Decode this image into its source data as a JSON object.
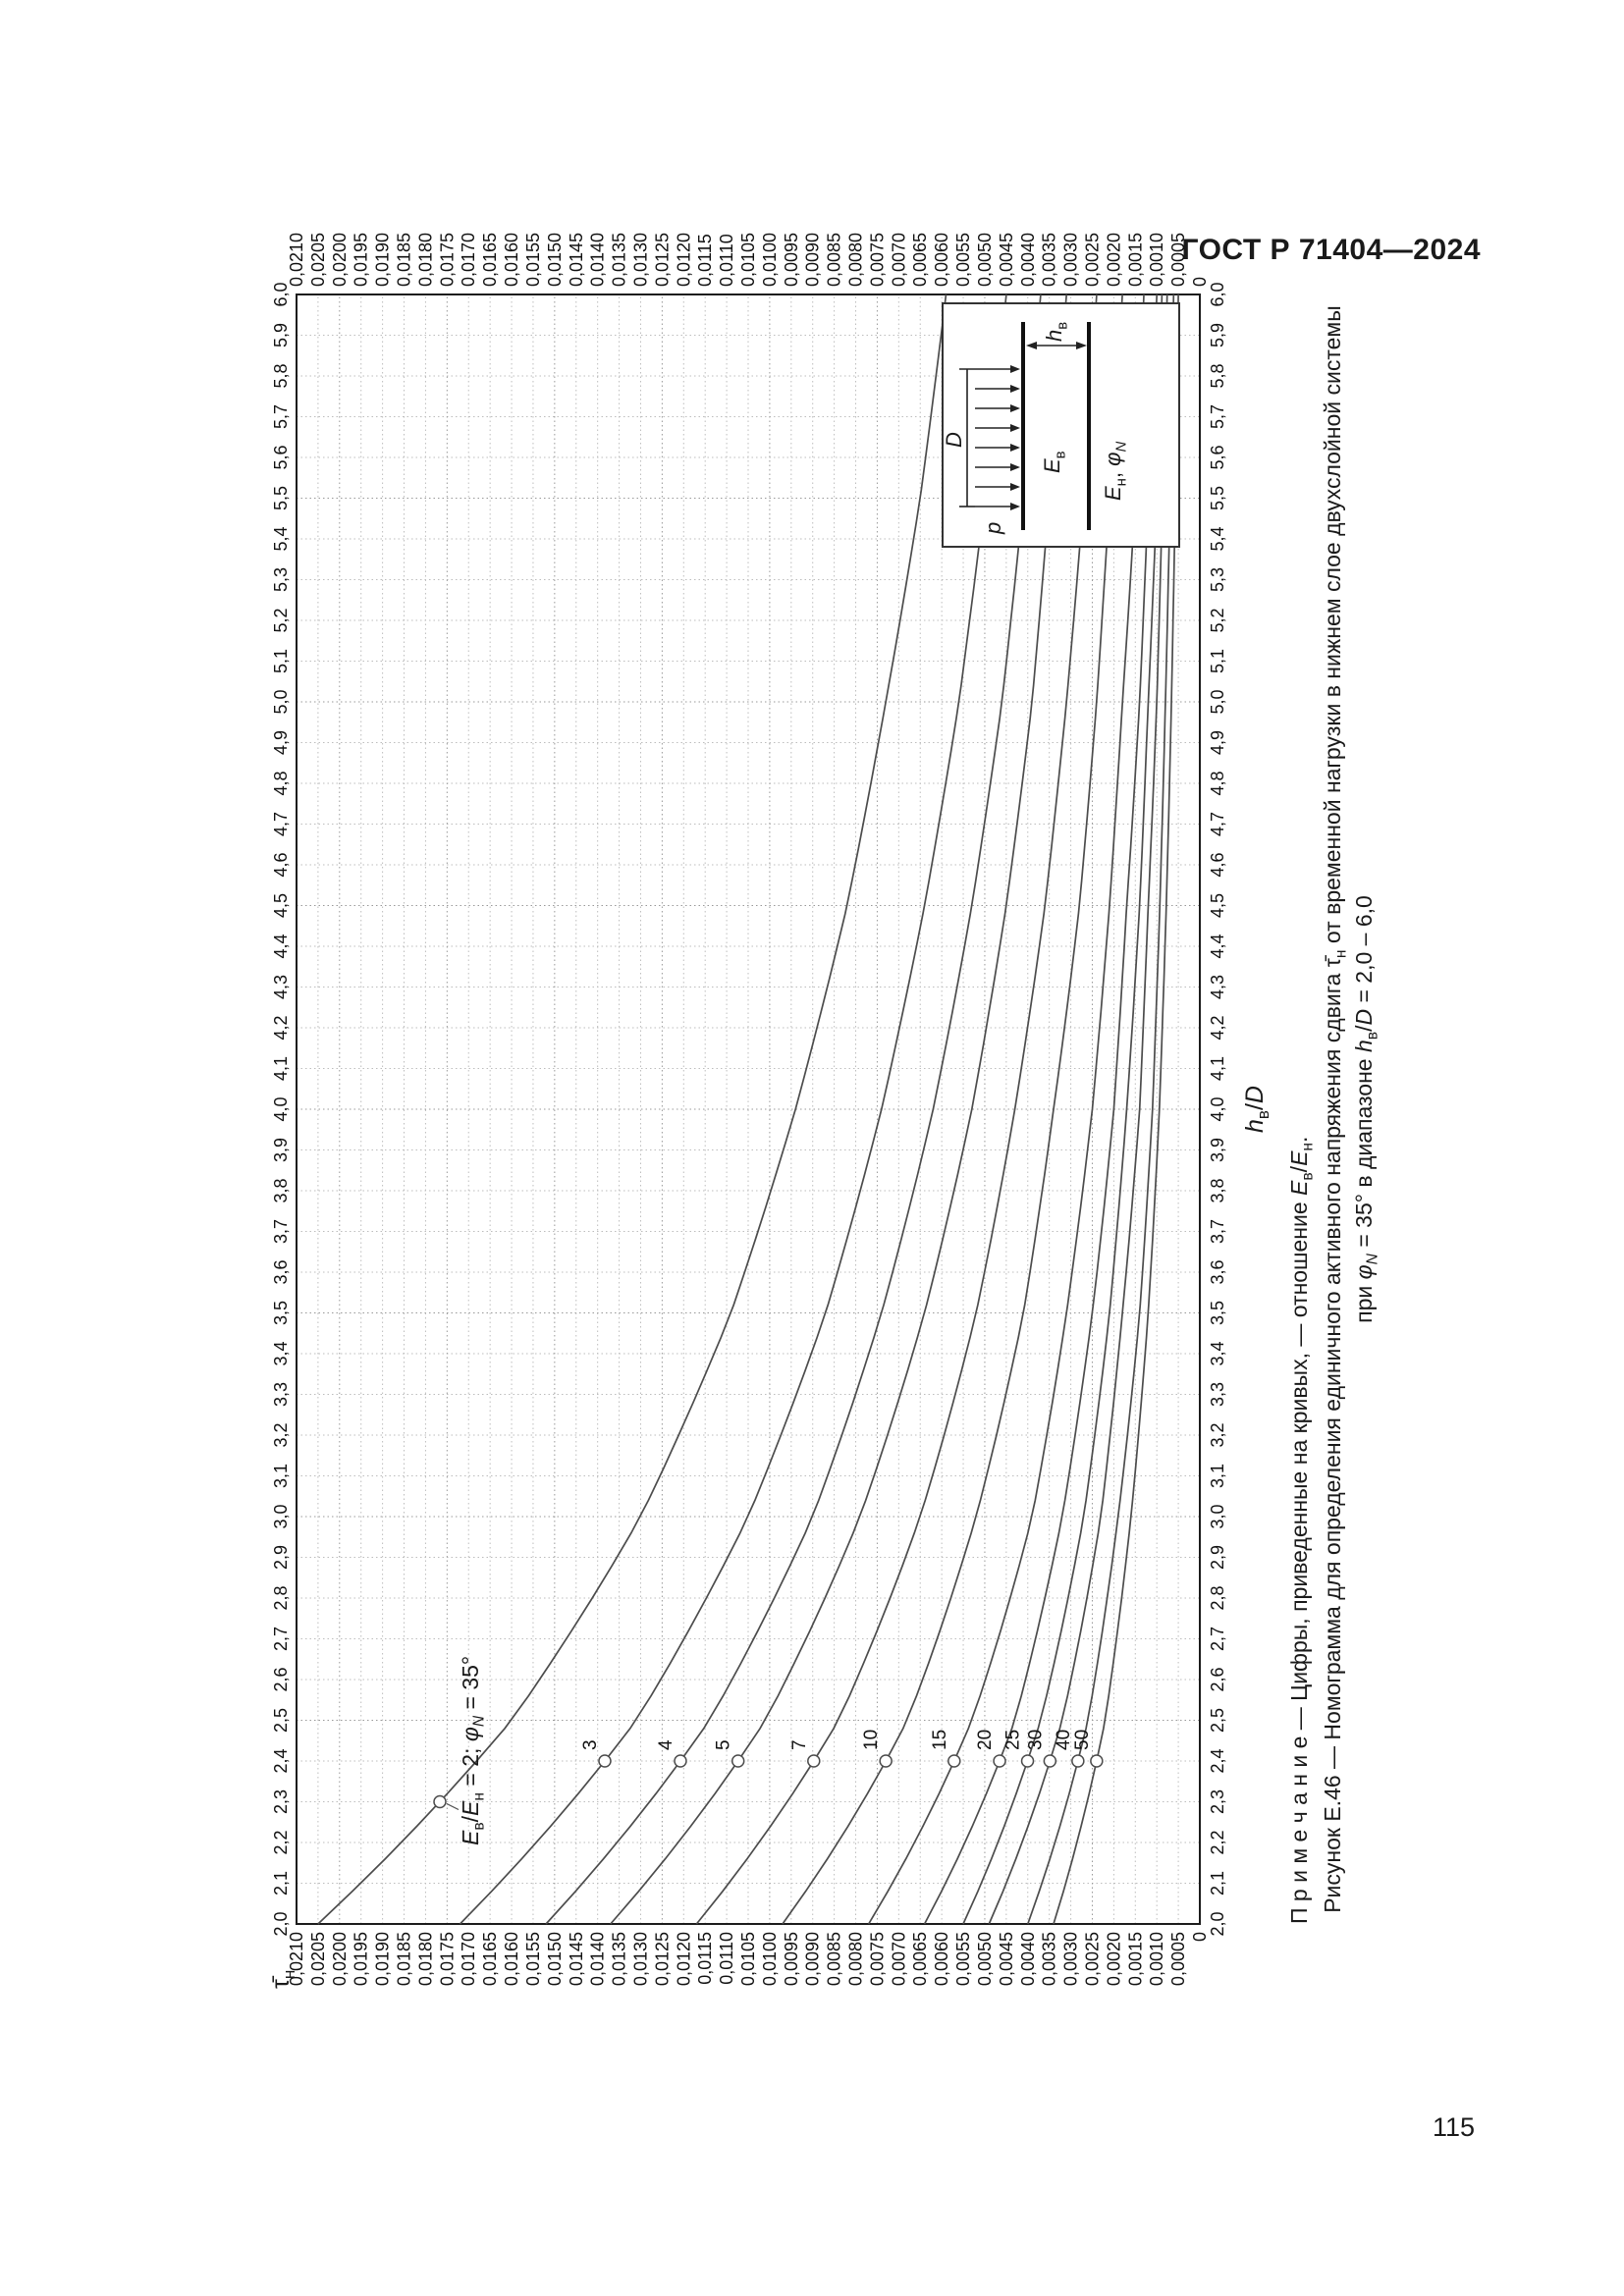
{
  "page": {
    "header": "ГОСТ Р 71404—2024",
    "number": "115"
  },
  "figure": {
    "annotation_series": "2",
    "annotation_segments": [
      {
        "t": "E",
        "i": true
      },
      {
        "t": "в",
        "sub": true
      },
      {
        "t": "/"
      },
      {
        "t": "E",
        "i": true
      },
      {
        "t": "н",
        "sub": true
      },
      {
        "t": " = 2; "
      },
      {
        "t": "φ",
        "i": true
      },
      {
        "t": "N",
        "i": true,
        "sub": true
      },
      {
        "t": " = 35°"
      }
    ],
    "y_axis_title_segments": [
      {
        "t": "τ̄"
      },
      {
        "t": "н",
        "sub": true
      }
    ],
    "x_axis_title_segments": [
      {
        "t": "h",
        "i": true
      },
      {
        "t": "в",
        "sub": true
      },
      {
        "t": "/"
      },
      {
        "t": "D",
        "i": true
      }
    ],
    "note_segments": [
      {
        "t": "П р и м е ч а н и е — Цифры, приведенные на кривых, — отношение "
      },
      {
        "t": "E",
        "i": true
      },
      {
        "t": "в",
        "sub": true
      },
      {
        "t": "/"
      },
      {
        "t": "E",
        "i": true
      },
      {
        "t": "н",
        "sub": true
      },
      {
        "t": "."
      }
    ],
    "caption_line1_segments": [
      {
        "t": "Рисунок Е.46 — Номограмма для определения единичного активного напряжения сдвига "
      },
      {
        "t": "τ̄"
      },
      {
        "t": "н",
        "sub": true
      },
      {
        "t": " от временной нагрузки в нижнем слое двухслойной системы"
      }
    ],
    "caption_line2_segments": [
      {
        "t": "при "
      },
      {
        "t": "φ",
        "i": true
      },
      {
        "t": "N",
        "i": true,
        "sub": true
      },
      {
        "t": " = 35° в диапазоне "
      },
      {
        "t": "h",
        "i": true
      },
      {
        "t": "в",
        "sub": true
      },
      {
        "t": "/"
      },
      {
        "t": "D",
        "i": true
      },
      {
        "t": " = 2,0 – 6,0"
      }
    ],
    "inset": {
      "p_segments": [
        {
          "t": "p",
          "i": true
        }
      ],
      "D_segments": [
        {
          "t": "D",
          "i": true
        }
      ],
      "upper_layer_segments": [
        {
          "t": "E",
          "i": true
        },
        {
          "t": "в",
          "sub": true
        }
      ],
      "lower_layer_segments": [
        {
          "t": "E",
          "i": true
        },
        {
          "t": "н",
          "sub": true
        },
        {
          "t": ", "
        },
        {
          "t": "φ",
          "i": true
        },
        {
          "t": "N",
          "i": true,
          "sub": true
        }
      ],
      "thickness_segments": [
        {
          "t": "h",
          "i": true
        },
        {
          "t": "в",
          "sub": true
        }
      ]
    }
  },
  "chart_data": {
    "type": "line",
    "title": "Номограмма Е.46: τ̄н от hв/D при φN = 35°, кривые — отношение Eв/Ен",
    "xlabel": "hв/D",
    "ylabel": "τ̄н",
    "x_min": 2.0,
    "x_max": 6.0,
    "x_step": 0.1,
    "y_min": 0,
    "y_max": 0.021,
    "y_step": 0.0005,
    "grid": "dotted minor every 0.1 / 0.0005, darker every 0.5 / 0.0025",
    "legend": "numbers on curves = Eв/Ен",
    "curve_label_x": 2.4,
    "x": [
      2.0,
      2.5,
      3.0,
      3.5,
      4.0,
      4.5,
      5.0,
      5.5,
      6.0
    ],
    "series": [
      {
        "name": "2",
        "label_on_curve": false,
        "values": [
          0.0205,
          0.016,
          0.013,
          0.0109,
          0.0094,
          0.0082,
          0.0073,
          0.0065,
          0.0059
        ]
      },
      {
        "name": "3",
        "label_on_curve": true,
        "values": [
          0.0172,
          0.0131,
          0.0105,
          0.0087,
          0.0074,
          0.0064,
          0.0056,
          0.005,
          0.0045
        ]
      },
      {
        "name": "4",
        "label_on_curve": true,
        "values": [
          0.0152,
          0.0114,
          0.009,
          0.0074,
          0.0062,
          0.0053,
          0.0046,
          0.0041,
          0.0037
        ]
      },
      {
        "name": "5",
        "label_on_curve": true,
        "values": [
          0.0137,
          0.0101,
          0.0079,
          0.0064,
          0.0053,
          0.0045,
          0.0039,
          0.0035,
          0.0031
        ]
      },
      {
        "name": "7",
        "label_on_curve": true,
        "values": [
          0.0117,
          0.0084,
          0.0065,
          0.0052,
          0.0043,
          0.0036,
          0.0031,
          0.0027,
          0.0024
        ]
      },
      {
        "name": "10",
        "label_on_curve": true,
        "values": [
          0.0097,
          0.0068,
          0.0052,
          0.0041,
          0.0034,
          0.0028,
          0.0024,
          0.0021,
          0.0018
        ]
      },
      {
        "name": "15",
        "label_on_curve": true,
        "values": [
          0.0077,
          0.0053,
          0.0039,
          0.0031,
          0.0025,
          0.0021,
          0.0018,
          0.0015,
          0.0013
        ]
      },
      {
        "name": "20",
        "label_on_curve": true,
        "values": [
          0.0064,
          0.0043,
          0.0032,
          0.0025,
          0.002,
          0.0017,
          0.0014,
          0.0012,
          0.001
        ]
      },
      {
        "name": "25",
        "label_on_curve": true,
        "values": [
          0.0055,
          0.0037,
          0.0027,
          0.0021,
          0.0017,
          0.0014,
          0.0012,
          0.001,
          0.00088
        ]
      },
      {
        "name": "30",
        "label_on_curve": true,
        "values": [
          0.0049,
          0.0032,
          0.0023,
          0.0018,
          0.0014,
          0.0012,
          0.001,
          0.00087,
          0.00076
        ]
      },
      {
        "name": "40",
        "label_on_curve": true,
        "values": [
          0.004,
          0.0026,
          0.0019,
          0.0014,
          0.0011,
          0.00093,
          0.0008,
          0.00069,
          0.00061
        ]
      },
      {
        "name": "50",
        "label_on_curve": true,
        "values": [
          0.0034,
          0.0022,
          0.0016,
          0.0012,
          0.00094,
          0.00078,
          0.00066,
          0.00057,
          0.0005
        ]
      }
    ],
    "x_tick_labels": [
      "2,0",
      "2,1",
      "2,2",
      "2,3",
      "2,4",
      "2,5",
      "2,6",
      "2,7",
      "2,8",
      "2,9",
      "3,0",
      "3,1",
      "3,2",
      "3,3",
      "3,4",
      "3,5",
      "3,6",
      "3,7",
      "3,8",
      "3,9",
      "4,0",
      "4,1",
      "4,2",
      "4,3",
      "4,4",
      "4,5",
      "4,6",
      "4,7",
      "4,8",
      "4,9",
      "5,0",
      "5,1",
      "5,2",
      "5,3",
      "5,4",
      "5,5",
      "5,6",
      "5,7",
      "5,8",
      "5,9",
      "6,0"
    ],
    "y_tick_labels": [
      "0",
      "0,0005",
      "0,0010",
      "0,0015",
      "0,0020",
      "0,0025",
      "0,0030",
      "0,0035",
      "0,0040",
      "0,0045",
      "0,0050",
      "0,0055",
      "0,0060",
      "0,0065",
      "0,0070",
      "0,0075",
      "0,0080",
      "0,0085",
      "0,0090",
      "0,0095",
      "0,0100",
      "0,0105",
      "0,0110",
      "0,0115",
      "0,0120",
      "0,0125",
      "0,0130",
      "0,0135",
      "0,0140",
      "0,0145",
      "0,0150",
      "0,0155",
      "0,0160",
      "0,0165",
      "0,0170",
      "0,0175",
      "0,0180",
      "0,0185",
      "0,0190",
      "0,0195",
      "0,0200",
      "0,0205",
      "0,0210"
    ]
  }
}
